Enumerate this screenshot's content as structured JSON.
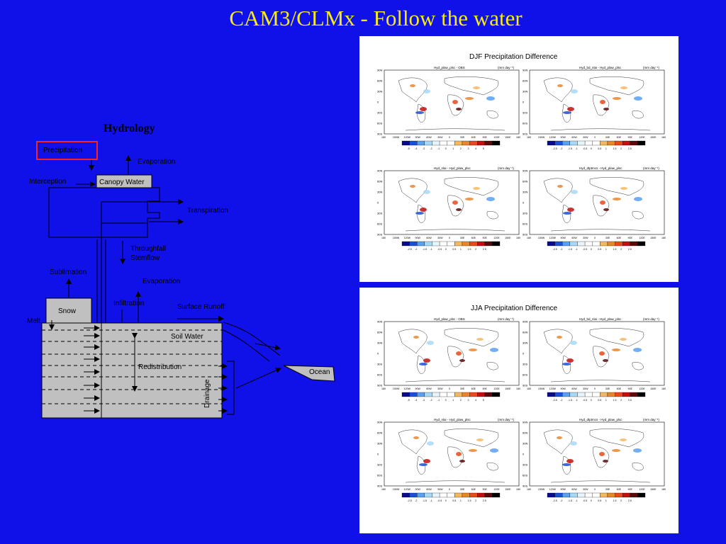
{
  "slide": {
    "title": "CAM3/CLMx - Follow the water"
  },
  "diagram": {
    "heading": "Hydrology",
    "labels": {
      "precipitation": "Precipitation",
      "evaporation_top": "Evaporation",
      "interception": "Interception",
      "canopy_water": "Canopy Water",
      "transpiration": "Transpiration",
      "throughfall": "Throughfall",
      "stemflow": "Stemflow",
      "sublimation": "Sublimation",
      "evaporation_ground": "Evaporation",
      "infiltration": "Infiltration",
      "surface_runoff": "Surface Runoff",
      "snow": "Snow",
      "melt": "Melt",
      "soil_water": "Soil Water",
      "redistribution": "Redistribution",
      "drainage": "Drainage",
      "ocean": "Ocean"
    },
    "colors": {
      "box_fill": "#c0c0c0",
      "highlight": "#ff2020",
      "text": "#000000"
    }
  },
  "panels": [
    {
      "title": "DJF Precipitation Difference",
      "maps": [
        {
          "left": "Hyd_plaw_plsc - OBS",
          "right": "(mm day⁻¹)"
        },
        {
          "left": "Hyd_bd_nlai - Hyd_plaw_plsc",
          "right": "(mm day⁻¹)"
        },
        {
          "left": "Hyd_nlai - Hyd_plaw_plsc",
          "right": "(mm day⁻¹)"
        },
        {
          "left": "Hyd_dtptmcs - Hyd_plaw_plsc",
          "right": "(mm day⁻¹)"
        }
      ],
      "colorbars": [
        [
          "-5",
          "-4",
          "-3",
          "-2",
          "-1",
          "0",
          "1",
          "2",
          "3",
          "4",
          "5"
        ],
        [
          "-2.5",
          "-2",
          "-1.5",
          "-1",
          "-0.5",
          "0",
          "0.5",
          "1",
          "1.5",
          "2",
          "2.5"
        ],
        [
          "-2.5",
          "-2",
          "-1.5",
          "-1",
          "-0.5",
          "0",
          "0.5",
          "1",
          "1.5",
          "2",
          "2.5"
        ],
        [
          "-2.5",
          "-2",
          "-1.5",
          "-1",
          "-0.5",
          "0",
          "0.5",
          "1",
          "1.5",
          "2",
          "2.5"
        ]
      ]
    },
    {
      "title": "JJA Precipitation Difference",
      "maps": [
        {
          "left": "Hyd_plaw_plsc - OBS",
          "right": "(mm day⁻¹)"
        },
        {
          "left": "Hyd_bd_nlai - Hyd_plaw_plsc",
          "right": "(mm day⁻¹)"
        },
        {
          "left": "Hyd_nlai - Hyd_plaw_plsc",
          "right": "(mm day⁻¹)"
        },
        {
          "left": "Hyd_dtptmcs - Hyd_plaw_plsc",
          "right": "(mm day⁻¹)"
        }
      ],
      "colorbars": [
        [
          "-5",
          "-4",
          "-3",
          "-2",
          "-1",
          "0",
          "1",
          "2",
          "3",
          "4",
          "5"
        ],
        [
          "-2.5",
          "-2",
          "-1.5",
          "-1",
          "-0.5",
          "0",
          "0.5",
          "1",
          "1.5",
          "2",
          "2.5"
        ],
        [
          "-2.5",
          "-2",
          "-1.5",
          "-1",
          "-0.5",
          "0",
          "0.5",
          "1",
          "1.5",
          "2",
          "2.5"
        ],
        [
          "-2.5",
          "-2",
          "-1.5",
          "-1",
          "-0.5",
          "0",
          "0.5",
          "1",
          "1.5",
          "2",
          "2.5"
        ]
      ]
    }
  ],
  "map_axes": {
    "lat_ticks": [
      "90N",
      "60N",
      "30N",
      "0",
      "30S",
      "60S",
      "90S"
    ],
    "lon_ticks": [
      "180",
      "150W",
      "120W",
      "90W",
      "60W",
      "30W",
      "0",
      "30E",
      "60E",
      "90E",
      "120E",
      "150E",
      "180"
    ]
  },
  "colorbar_colors": [
    "#0a0a8c",
    "#1a4fd8",
    "#5aa0f0",
    "#a8d8f8",
    "#e8f4fc",
    "#ffffff",
    "#ffffff",
    "#f4b860",
    "#e8862a",
    "#e84a1a",
    "#c01010",
    "#5a0a0a",
    "#000000"
  ]
}
